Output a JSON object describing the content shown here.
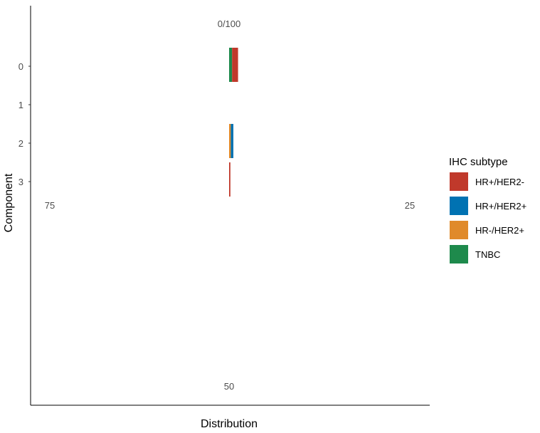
{
  "chart_data": {
    "type": "bar",
    "coord": "polar",
    "xlabel": "Distribution",
    "ylabel": "Component",
    "angle_ticks": [
      "0/100",
      "25",
      "50",
      "75"
    ],
    "components": [
      "0",
      "1",
      "2",
      "3"
    ],
    "legend": {
      "title": "IHC subtype",
      "placement": "right",
      "entries": [
        {
          "label": "HR+/HER2-",
          "color": "#C0392B"
        },
        {
          "label": "HR+/HER2+",
          "color": "#0072B2"
        },
        {
          "label": "HR-/HER2+",
          "color": "#E08A2A"
        },
        {
          "label": "TNBC",
          "color": "#1E8A4C"
        }
      ]
    },
    "series": [
      {
        "name": "HR+/HER2-",
        "values": [
          1.4,
          0,
          0,
          0.3
        ]
      },
      {
        "name": "HR+/HER2+",
        "values": [
          0,
          0,
          0.6,
          0
        ]
      },
      {
        "name": "HR-/HER2+",
        "values": [
          0,
          0,
          0.4,
          0
        ]
      },
      {
        "name": "TNBC",
        "values": [
          0.7,
          0,
          0,
          0
        ]
      }
    ],
    "grid": false
  }
}
